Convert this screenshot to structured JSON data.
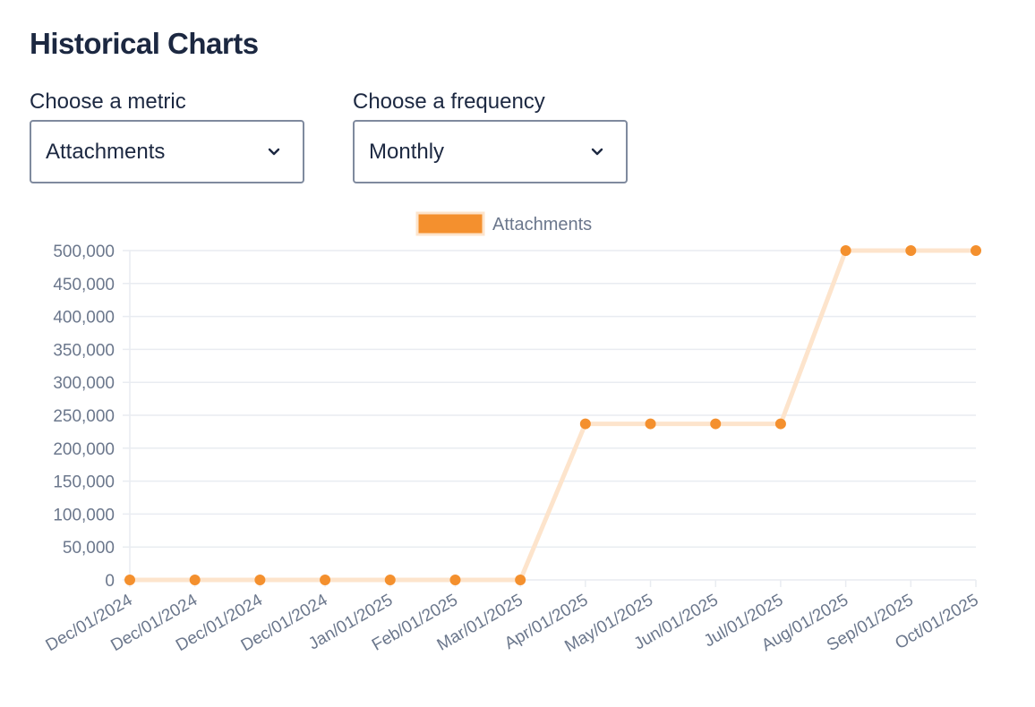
{
  "page": {
    "title": "Historical Charts"
  },
  "controls": {
    "metric": {
      "label": "Choose a metric",
      "selected": "Attachments"
    },
    "frequency": {
      "label": "Choose a frequency",
      "selected": "Monthly"
    }
  },
  "icons": {
    "dropdown": "chevron-down-icon"
  },
  "colors": {
    "series": "#f4902e",
    "series_line": "#fde4cc",
    "grid": "#e9ecf1",
    "axis_text": "#6b778c"
  },
  "chart_data": {
    "type": "line",
    "title": "",
    "xlabel": "",
    "ylabel": "",
    "legend_position": "top-center",
    "grid": true,
    "ylim": [
      0,
      500000
    ],
    "y_ticks": [
      0,
      50000,
      100000,
      150000,
      200000,
      250000,
      300000,
      350000,
      400000,
      450000,
      500000
    ],
    "y_tick_labels": [
      "0",
      "50,000",
      "100,000",
      "150,000",
      "200,000",
      "250,000",
      "300,000",
      "350,000",
      "400,000",
      "450,000",
      "500,000"
    ],
    "categories": [
      "Dec/01/2024",
      "Dec/01/2024",
      "Dec/01/2024",
      "Dec/01/2024",
      "Jan/01/2025",
      "Feb/01/2025",
      "Mar/01/2025",
      "Apr/01/2025",
      "May/01/2025",
      "Jun/01/2025",
      "Jul/01/2025",
      "Aug/01/2025",
      "Sep/01/2025",
      "Oct/01/2025"
    ],
    "series": [
      {
        "name": "Attachments",
        "values": [
          0,
          0,
          0,
          0,
          0,
          0,
          0,
          237000,
          237000,
          237000,
          237000,
          500000,
          500000,
          500000
        ]
      }
    ]
  }
}
